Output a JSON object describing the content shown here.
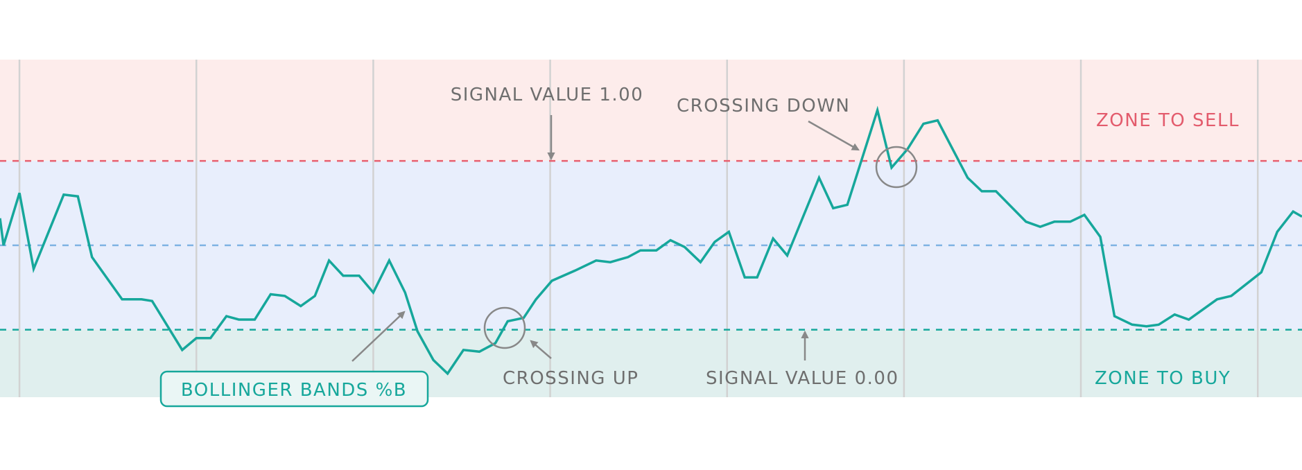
{
  "colors": {
    "sell_zone_bg": "#fdeceb",
    "neutral_zone_bg": "#e8eefc",
    "buy_zone_bg": "#e0efee",
    "upper_line": "#e8606f",
    "middle_line": "#7fb3e3",
    "lower_line": "#16a79b",
    "series_line": "#16a79b",
    "annotation": "#888888",
    "grid": "#d2d2d2"
  },
  "chart_data": {
    "type": "line",
    "title": "",
    "xlabel": "",
    "ylabel": "",
    "grid": {
      "vertical": true,
      "horizontal": false
    },
    "xlim": [
      -0.11,
      7.25
    ],
    "ylim": [
      -0.4,
      1.6
    ],
    "vertical_gridlines": [
      0,
      1,
      2,
      3,
      4,
      5,
      6,
      7
    ],
    "reference_lines": [
      {
        "value": 1.0,
        "style": "dashed",
        "color": "#e8606f"
      },
      {
        "value": 0.5,
        "style": "dashed",
        "color": "#7fb3e3"
      },
      {
        "value": 0.0,
        "style": "dashed",
        "color": "#16a79b"
      }
    ],
    "zones": [
      {
        "label": "ZONE TO SELL",
        "from": 1.0,
        "to": 1.6
      },
      {
        "label": "",
        "from": 0.0,
        "to": 1.0
      },
      {
        "label": "ZONE TO BUY",
        "from": -0.4,
        "to": 0.0
      }
    ],
    "series": [
      {
        "name": "BOLLINGER BANDS %B",
        "x": [
          -0.11,
          -0.09,
          0,
          0.08,
          0.25,
          0.33,
          0.41,
          0.58,
          0.69,
          0.75,
          0.92,
          1.0,
          1.08,
          1.17,
          1.24,
          1.33,
          1.42,
          1.5,
          1.59,
          1.67,
          1.75,
          1.83,
          1.92,
          2.0,
          2.09,
          2.18,
          2.25,
          2.34,
          2.42,
          2.51,
          2.6,
          2.69,
          2.76,
          2.85,
          2.92,
          3.01,
          3.14,
          3.26,
          3.34,
          3.44,
          3.51,
          3.6,
          3.68,
          3.76,
          3.85,
          3.93,
          4.01,
          4.1,
          4.17,
          4.26,
          4.34,
          4.52,
          4.6,
          4.68,
          4.85,
          4.93,
          5.02,
          5.11,
          5.19,
          5.36,
          5.44,
          5.52,
          5.69,
          5.77,
          5.85,
          5.94,
          6.02,
          6.11,
          6.19,
          6.29,
          6.37,
          6.44,
          6.53,
          6.61,
          6.77,
          6.85,
          7.02,
          7.11,
          7.2,
          7.25
        ],
        "y": [
          0.66,
          0.5,
          0.81,
          0.36,
          0.8,
          0.79,
          0.43,
          0.18,
          0.18,
          0.17,
          -0.12,
          -0.05,
          -0.05,
          0.08,
          0.06,
          0.06,
          0.21,
          0.2,
          0.14,
          0.2,
          0.41,
          0.32,
          0.32,
          0.22,
          0.41,
          0.22,
          -0.01,
          -0.18,
          -0.26,
          -0.12,
          -0.13,
          -0.08,
          0.05,
          0.07,
          0.18,
          0.29,
          0.35,
          0.41,
          0.4,
          0.43,
          0.47,
          0.47,
          0.53,
          0.49,
          0.4,
          0.52,
          0.58,
          0.31,
          0.31,
          0.54,
          0.44,
          0.9,
          0.72,
          0.74,
          1.3,
          0.96,
          1.07,
          1.22,
          1.24,
          0.9,
          0.82,
          0.82,
          0.64,
          0.61,
          0.64,
          0.64,
          0.68,
          0.55,
          0.08,
          0.03,
          0.02,
          0.03,
          0.09,
          0.06,
          0.18,
          0.2,
          0.34,
          0.58,
          0.7,
          0.67
        ]
      }
    ],
    "annotations": {
      "signal_high": "SIGNAL VALUE 1.00",
      "signal_low": "SIGNAL VALUE 0.00",
      "crossing_down": "CROSSING DOWN",
      "crossing_up": "CROSSING UP",
      "series_label": "BOLLINGER BANDS %B",
      "zone_sell": "ZONE TO SELL",
      "zone_buy": "ZONE TO BUY"
    }
  }
}
